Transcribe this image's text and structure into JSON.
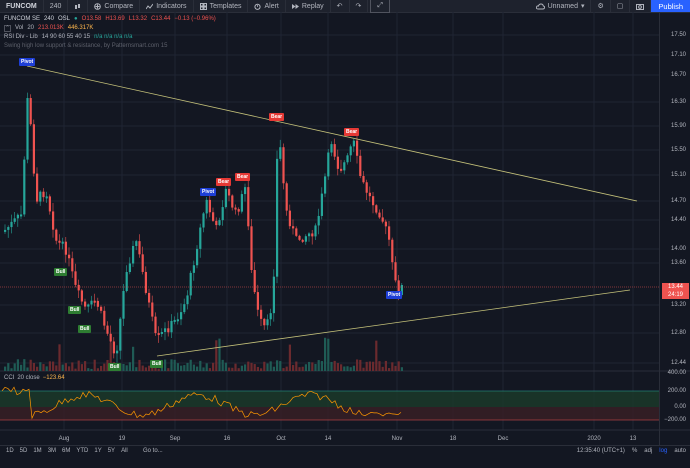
{
  "topbar": {
    "symbol": "FUNCOM",
    "compare": "Compare",
    "indicators": "Indicators",
    "templates": "Templates",
    "alert": "Alert",
    "replay": "Replay",
    "layout_name": "Unnamed",
    "publish": "Publish"
  },
  "legend": {
    "symbol": "FUNCOM SE",
    "interval": "240",
    "exchange": "OSL",
    "open": "O13.58",
    "high": "H13.69",
    "low": "L13.32",
    "close": "C13.44",
    "change": "−0.13 (−0.96%)",
    "vol_label": "Vol",
    "vol_len": "20",
    "vol_val1": "213.013K",
    "vol_val2": "446.317K",
    "rsi_label": "RSI Div - Lib",
    "rsi_params": "14 90 60 55 40 15",
    "rsi_vals": "n/a n/a n/a n/a",
    "swing_label": "Swing high low support & resistance, by Patternsmart.com 15"
  },
  "price_axis": {
    "labels": [
      "17.50",
      "17.10",
      "16.70",
      "16.30",
      "15.90",
      "15.50",
      "15.10",
      "14.70",
      "14.40",
      "14.00",
      "13.60",
      "13.20",
      "12.80",
      "12.44"
    ],
    "current_price": "13.44",
    "countdown": "24:19",
    "marker_color": "#ef5350"
  },
  "cci": {
    "label": "CCI",
    "params": "20 close",
    "value": "−123.64",
    "axis_labels": [
      "400.00",
      "200.00",
      "0.00",
      "−200.00"
    ]
  },
  "time_axis": {
    "labels": [
      "Aug",
      "19",
      "Sep",
      "16",
      "Oct",
      "14",
      "Nov",
      "18",
      "Dec",
      "2020",
      "13"
    ]
  },
  "timeframes": [
    "1D",
    "5D",
    "1M",
    "3M",
    "6M",
    "YTD",
    "1Y",
    "5Y",
    "All"
  ],
  "goto": "Go to...",
  "bottom_right": {
    "clock": "12:35:40 (UTC+1)",
    "percent": "%",
    "adj": "adj",
    "log": "log",
    "auto": "auto"
  },
  "signals": {
    "pivot": "Pivot",
    "bear": "Bear",
    "bull": "Bull"
  }
}
